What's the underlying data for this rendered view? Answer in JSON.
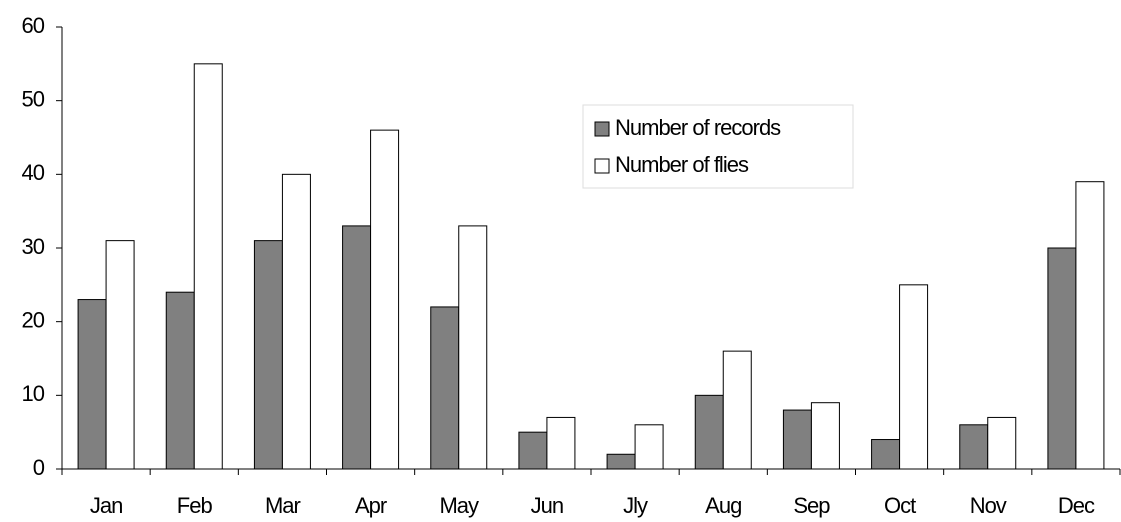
{
  "chart_data": {
    "type": "bar",
    "categories": [
      "Jan",
      "Feb",
      "Mar",
      "Apr",
      "May",
      "Jun",
      "Jly",
      "Aug",
      "Sep",
      "Oct",
      "Nov",
      "Dec"
    ],
    "series": [
      {
        "name": "Number of records",
        "color": "#808080",
        "values": [
          23,
          24,
          31,
          33,
          22,
          5,
          2,
          10,
          8,
          4,
          6,
          30
        ]
      },
      {
        "name": "Number of flies",
        "color": "#ffffff",
        "values": [
          31,
          55,
          40,
          46,
          33,
          7,
          6,
          16,
          9,
          25,
          7,
          39
        ]
      }
    ],
    "ylim": [
      0,
      60
    ],
    "yticks": [
      0,
      10,
      20,
      30,
      40,
      50,
      60
    ],
    "grid": false,
    "legend": "top"
  }
}
